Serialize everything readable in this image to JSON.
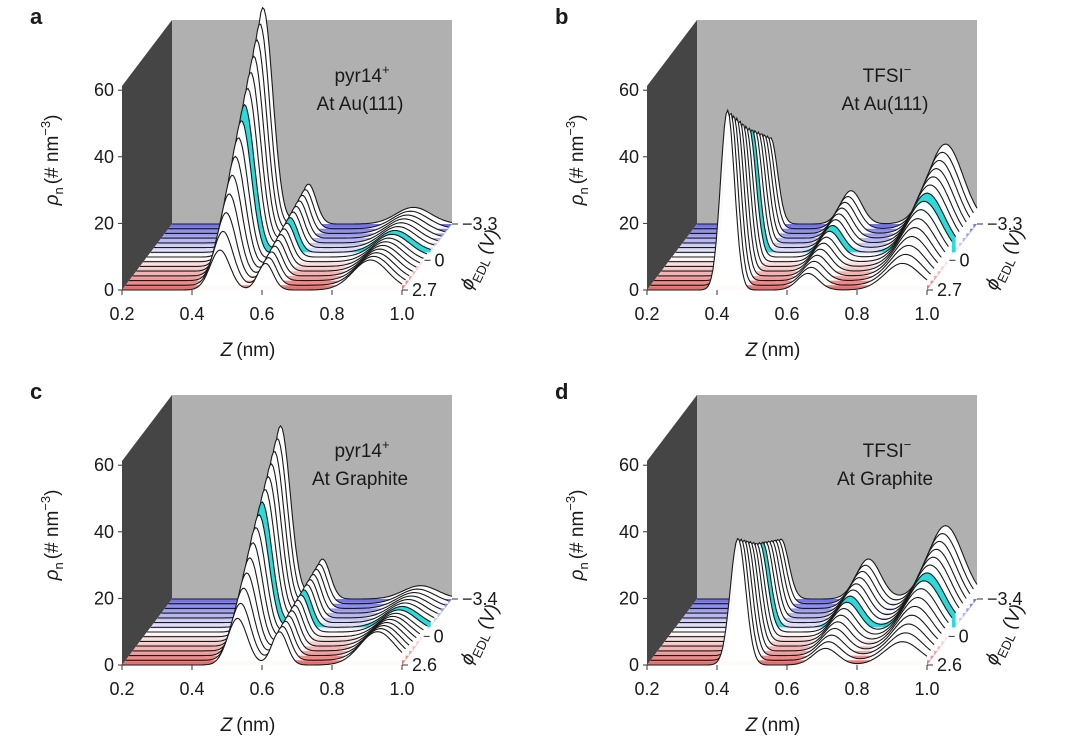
{
  "chart_data": [
    {
      "panel": "a",
      "type": "3d-waterfall-line",
      "species": "pyr14",
      "species_charge": "+",
      "surface": "At Au(111)",
      "xlabel_var": "Z",
      "xlabel_unit": "(nm)",
      "ylabel_main": "ρ",
      "ylabel_sub": "n",
      "ylabel_units": "(# nm",
      "ylabel_exp": "−3",
      "ylabel_close": ")",
      "zlabel_main": "ϕ",
      "zlabel_sub": "EDL",
      "zlabel_unit": "(V)",
      "x_ticks": [
        "0.2",
        "0.4",
        "0.6",
        "0.8",
        "1.0"
      ],
      "y_ticks": [
        "0",
        "20",
        "40",
        "60"
      ],
      "phi_ticks": [
        "−3.3",
        "0",
        "2.7"
      ],
      "xlim": [
        0.2,
        1.0
      ],
      "ylim": [
        0,
        75
      ],
      "phi_range": [
        -3.3,
        2.7
      ],
      "n_traces": 15,
      "highlight_trace_index": 6,
      "peaks": [
        {
          "z": 0.47,
          "height_neg": 65,
          "height_pos": 12,
          "width": 0.028
        },
        {
          "z": 0.6,
          "height_neg": 12,
          "height_pos": 8,
          "width": 0.022
        },
        {
          "z": 0.9,
          "height_neg": 5,
          "height_pos": 9,
          "width": 0.05
        }
      ],
      "colors": {
        "negative": "#6e6ee6",
        "positive": "#e86868",
        "highlight": "#20d8d8"
      }
    },
    {
      "panel": "b",
      "type": "3d-waterfall-line",
      "species": "TFSI",
      "species_charge": "−",
      "surface": "At Au(111)",
      "xlabel_var": "Z",
      "xlabel_unit": "(nm)",
      "ylabel_main": "ρ",
      "ylabel_sub": "n",
      "ylabel_units": "(# nm",
      "ylabel_exp": "−3",
      "ylabel_close": ")",
      "zlabel_main": "ϕ",
      "zlabel_sub": "EDL",
      "zlabel_unit": "(V)",
      "x_ticks": [
        "0.2",
        "0.4",
        "0.6",
        "0.8",
        "1.0"
      ],
      "y_ticks": [
        "0",
        "20",
        "40",
        "60"
      ],
      "phi_ticks": [
        "−3.3",
        "0",
        "2.7"
      ],
      "xlim": [
        0.2,
        1.0
      ],
      "ylim": [
        0,
        75
      ],
      "phi_range": [
        -3.3,
        2.7
      ],
      "n_traces": 15,
      "highlight_trace_index": 6,
      "peaks": [
        {
          "z": 0.42,
          "height_neg": 26,
          "height_pos": 54,
          "width": 0.02
        },
        {
          "z": 0.65,
          "height_neg": 10,
          "height_pos": 5,
          "width": 0.03
        },
        {
          "z": 0.92,
          "height_neg": 24,
          "height_pos": 8,
          "width": 0.05
        }
      ],
      "colors": {
        "negative": "#6e6ee6",
        "positive": "#e86868",
        "highlight": "#20d8d8"
      }
    },
    {
      "panel": "c",
      "type": "3d-waterfall-line",
      "species": "pyr14",
      "species_charge": "+",
      "surface": "At Graphite",
      "xlabel_var": "Z",
      "xlabel_unit": "(nm)",
      "ylabel_main": "ρ",
      "ylabel_sub": "n",
      "ylabel_units": "(# nm",
      "ylabel_exp": "−3",
      "ylabel_close": ")",
      "zlabel_main": "ϕ",
      "zlabel_sub": "EDL",
      "zlabel_unit": "(V)",
      "x_ticks": [
        "0.2",
        "0.4",
        "0.6",
        "0.8",
        "1.0"
      ],
      "y_ticks": [
        "0",
        "20",
        "40",
        "60"
      ],
      "phi_ticks": [
        "−3.4",
        "0",
        "2.6"
      ],
      "xlim": [
        0.2,
        1.0
      ],
      "ylim": [
        0,
        75
      ],
      "phi_range": [
        -3.4,
        2.6
      ],
      "n_traces": 15,
      "highlight_trace_index": 6,
      "peaks": [
        {
          "z": 0.52,
          "height_neg": 52,
          "height_pos": 14,
          "width": 0.028
        },
        {
          "z": 0.64,
          "height_neg": 12,
          "height_pos": 10,
          "width": 0.022
        },
        {
          "z": 0.92,
          "height_neg": 4,
          "height_pos": 10,
          "width": 0.05
        }
      ],
      "colors": {
        "negative": "#6e6ee6",
        "positive": "#e86868",
        "highlight": "#20d8d8"
      }
    },
    {
      "panel": "d",
      "type": "3d-waterfall-line",
      "species": "TFSI",
      "species_charge": "−",
      "surface": "At Graphite",
      "xlabel_var": "Z",
      "xlabel_unit": "(nm)",
      "ylabel_main": "ρ",
      "ylabel_sub": "n",
      "ylabel_units": "(# nm",
      "ylabel_exp": "−3",
      "ylabel_close": ")",
      "zlabel_main": "ϕ",
      "zlabel_sub": "EDL",
      "zlabel_unit": "(V)",
      "x_ticks": [
        "0.2",
        "0.4",
        "0.6",
        "0.8",
        "1.0"
      ],
      "y_ticks": [
        "0",
        "20",
        "40",
        "60"
      ],
      "phi_ticks": [
        "−3.4",
        "0",
        "2.6"
      ],
      "xlim": [
        0.2,
        1.0
      ],
      "ylim": [
        0,
        75
      ],
      "phi_range": [
        -3.4,
        2.6
      ],
      "n_traces": 15,
      "highlight_trace_index": 6,
      "peaks": [
        {
          "z": 0.45,
          "height_neg": 18,
          "height_pos": 38,
          "width": 0.022
        },
        {
          "z": 0.7,
          "height_neg": 12,
          "height_pos": 5,
          "width": 0.035
        },
        {
          "z": 0.92,
          "height_neg": 22,
          "height_pos": 7,
          "width": 0.05
        }
      ],
      "colors": {
        "negative": "#6e6ee6",
        "positive": "#e86868",
        "highlight": "#20d8d8"
      }
    }
  ]
}
